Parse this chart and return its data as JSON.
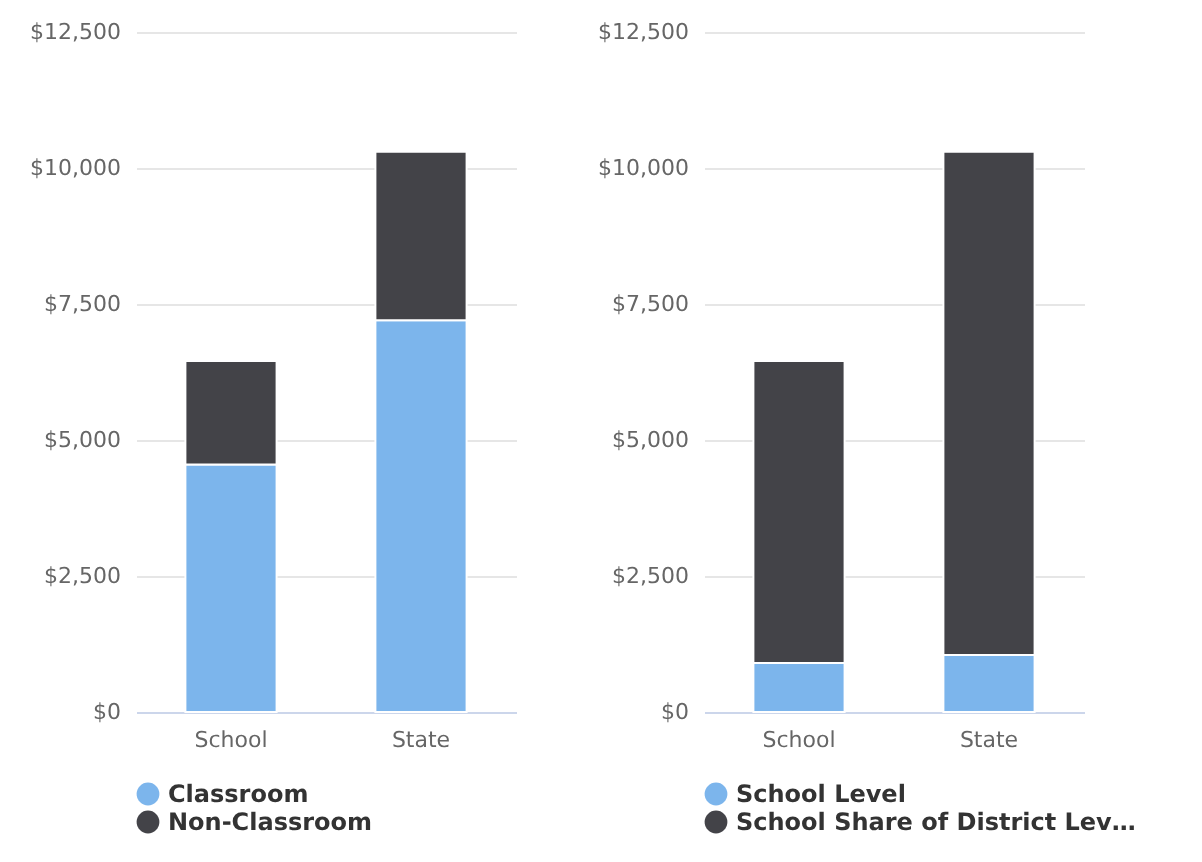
{
  "chart_data": [
    {
      "type": "bar",
      "stacked": true,
      "categories": [
        "School",
        "State"
      ],
      "series": [
        {
          "name": "Classroom",
          "color": "#7cb5ec",
          "values": [
            4550,
            7200
          ]
        },
        {
          "name": "Non-Classroom",
          "color": "#434348",
          "values": [
            1900,
            3100
          ]
        }
      ],
      "ylim": [
        0,
        12500
      ],
      "yticks": [
        {
          "value": 0,
          "label": "$0"
        },
        {
          "value": 2500,
          "label": "$2,500"
        },
        {
          "value": 5000,
          "label": "$5,000"
        },
        {
          "value": 7500,
          "label": "$7,500"
        },
        {
          "value": 10000,
          "label": "$10,000"
        },
        {
          "value": 12500,
          "label": "$12,500"
        }
      ],
      "grid": "y",
      "legend": "bottom"
    },
    {
      "type": "bar",
      "stacked": true,
      "categories": [
        "School",
        "State"
      ],
      "series": [
        {
          "name": "School Level",
          "color": "#7cb5ec",
          "values": [
            900,
            1050
          ]
        },
        {
          "name": "School Share of District Lev…",
          "color": "#434348",
          "values": [
            5550,
            9250
          ]
        }
      ],
      "ylim": [
        0,
        12500
      ],
      "yticks": [
        {
          "value": 0,
          "label": "$0"
        },
        {
          "value": 2500,
          "label": "$2,500"
        },
        {
          "value": 5000,
          "label": "$5,000"
        },
        {
          "value": 7500,
          "label": "$7,500"
        },
        {
          "value": 10000,
          "label": "$10,000"
        },
        {
          "value": 12500,
          "label": "$12,500"
        }
      ],
      "grid": "y",
      "legend": "bottom"
    }
  ]
}
